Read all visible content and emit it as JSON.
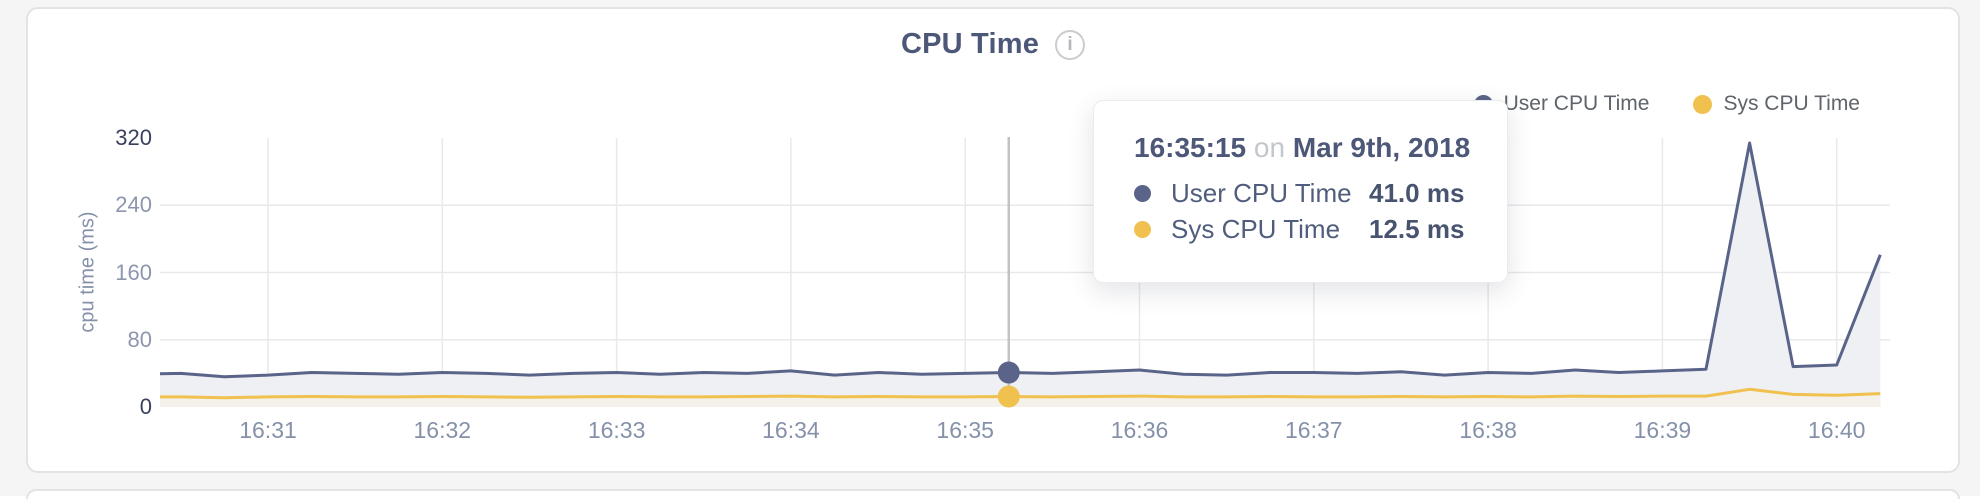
{
  "panel": {
    "title": "CPU Time",
    "info_glyph": "i"
  },
  "legend": [
    {
      "label": "User CPU Time",
      "color": "#5a6489"
    },
    {
      "label": "Sys CPU Time",
      "color": "#f0c14e"
    }
  ],
  "tooltip": {
    "time": "16:35:15",
    "connector": "on",
    "date": "Mar 9th, 2018",
    "rows": [
      {
        "label": "User CPU Time",
        "value": "41.0 ms",
        "color": "#5a6489"
      },
      {
        "label": "Sys CPU Time",
        "value": "12.5 ms",
        "color": "#f0c14e"
      }
    ]
  },
  "chart_data": {
    "type": "area",
    "title": "CPU Time",
    "xlabel": "",
    "ylabel": "cpu time (ms)",
    "ylim": [
      0,
      320
    ],
    "yticks": [
      0,
      80,
      160,
      240,
      320
    ],
    "xticks": [
      "16:31",
      "16:32",
      "16:33",
      "16:34",
      "16:35",
      "16:36",
      "16:37",
      "16:38",
      "16:39",
      "16:40"
    ],
    "grid": true,
    "legend_position": "top-right",
    "x": [
      "16:30:15",
      "16:30:30",
      "16:30:45",
      "16:31:00",
      "16:31:15",
      "16:31:30",
      "16:31:45",
      "16:32:00",
      "16:32:15",
      "16:32:30",
      "16:32:45",
      "16:33:00",
      "16:33:15",
      "16:33:30",
      "16:33:45",
      "16:34:00",
      "16:34:15",
      "16:34:30",
      "16:34:45",
      "16:35:00",
      "16:35:15",
      "16:35:30",
      "16:35:45",
      "16:36:00",
      "16:36:15",
      "16:36:30",
      "16:36:45",
      "16:37:00",
      "16:37:15",
      "16:37:30",
      "16:37:45",
      "16:38:00",
      "16:38:15",
      "16:38:30",
      "16:38:45",
      "16:39:00",
      "16:39:15",
      "16:39:30",
      "16:39:45",
      "16:40:00",
      "16:40:15"
    ],
    "series": [
      {
        "name": "User CPU Time",
        "color": "#5a6489",
        "fill": "#eef0f4",
        "values": [
          39,
          40,
          36,
          38,
          41,
          40,
          39,
          41,
          40,
          38,
          40,
          41,
          39,
          41,
          40,
          43,
          38,
          41,
          39,
          40,
          41,
          40,
          42,
          44,
          39,
          38,
          41,
          41,
          40,
          42,
          38,
          41,
          40,
          44,
          41,
          43,
          45,
          314,
          48,
          50,
          181
        ]
      },
      {
        "name": "Sys CPU Time",
        "color": "#f0c14e",
        "fill": "#f3f1e9",
        "values": [
          12,
          12,
          11,
          12,
          12.5,
          12,
          12,
          12.5,
          12,
          11.5,
          12,
          12.5,
          12,
          12,
          12.5,
          13,
          12,
          12.5,
          12,
          12,
          12.5,
          12,
          12.5,
          13,
          12,
          12,
          12.5,
          12,
          12,
          12.5,
          12,
          12.5,
          12,
          13,
          12.5,
          13,
          13,
          21,
          15,
          14,
          16
        ]
      }
    ],
    "hover": {
      "time": "16:35:15",
      "user": 41.0,
      "sys": 12.5
    }
  }
}
